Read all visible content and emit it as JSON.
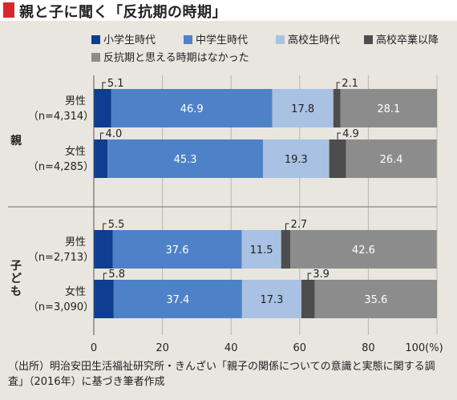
{
  "title": "親と子に聞く「反抗期の時期」",
  "source": "（出所）明治安田生活福祉研究所・きんざい「親子の関係についての意識と実態に関する調査」（2016年）に基づき筆者作成",
  "chart_data": {
    "type": "bar",
    "orientation": "horizontal",
    "stacked": true,
    "title": "親と子に聞く「反抗期の時期」",
    "xlim": [
      0,
      100
    ],
    "xticks": [
      "0",
      "20",
      "40",
      "60",
      "80",
      "100(%)"
    ],
    "grid": true,
    "legend_position": "top",
    "groups": [
      {
        "label": "親",
        "rows": [
          0,
          1
        ]
      },
      {
        "label": "子ども",
        "rows": [
          2,
          3
        ]
      }
    ],
    "categories": [
      {
        "line1": "男性",
        "line2": "（n=4,314）"
      },
      {
        "line1": "女性",
        "line2": "（n=4,285）"
      },
      {
        "line1": "男性",
        "line2": "（n=2,713）"
      },
      {
        "line1": "女性",
        "line2": "（n=3,090）"
      }
    ],
    "series": [
      {
        "name": "小学生時代",
        "color": "#0f3d8f",
        "values": [
          5.1,
          4.0,
          5.5,
          5.8
        ]
      },
      {
        "name": "中学生時代",
        "color": "#4e82c8",
        "values": [
          46.9,
          45.3,
          37.6,
          37.4
        ]
      },
      {
        "name": "高校生時代",
        "color": "#a9c2e3",
        "values": [
          17.8,
          19.3,
          11.5,
          17.3
        ]
      },
      {
        "name": "高校卒業以降",
        "color": "#4d4d4d",
        "values": [
          2.1,
          4.9,
          2.7,
          3.9
        ]
      },
      {
        "name": "反抗期と思える時期はなかった",
        "color": "#8c8c8c",
        "values": [
          28.1,
          26.4,
          42.6,
          35.6
        ]
      }
    ]
  }
}
